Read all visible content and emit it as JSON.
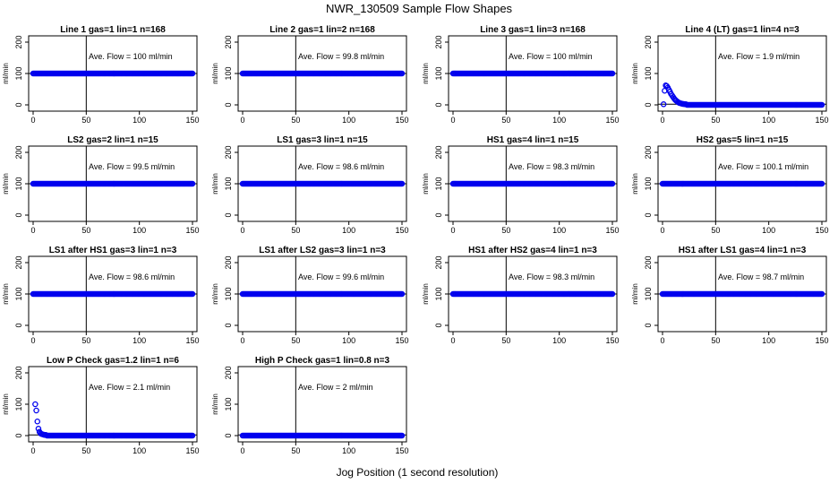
{
  "title": "NWR_130509  Sample Flow Shapes",
  "xlabel": "Jog Position (1 second resolution)",
  "ylabel": "ml/min",
  "avg_prefix": "Ave. Flow =",
  "avg_suffix": "ml/min",
  "colors": {
    "points": "#0000ee",
    "axes": "#000000",
    "background": "#ffffff"
  },
  "chart_data": [
    {
      "type": "scatter",
      "title": "Line 1 gas=1 lin=1 n=168",
      "ave_flow": "100",
      "shape": "flat",
      "level": 100,
      "xlim": [
        0,
        150
      ],
      "ylim": [
        -20,
        220
      ],
      "xticks": [
        0,
        50,
        100,
        150
      ],
      "yticks": [
        0,
        100,
        200
      ],
      "vline_x": 50,
      "hline_y": 100
    },
    {
      "type": "scatter",
      "title": "Line 2 gas=1 lin=2 n=168",
      "ave_flow": "99.8",
      "shape": "flat",
      "level": 100,
      "xlim": [
        0,
        150
      ],
      "ylim": [
        -20,
        220
      ],
      "xticks": [
        0,
        50,
        100,
        150
      ],
      "yticks": [
        0,
        100,
        200
      ],
      "vline_x": 50,
      "hline_y": 100
    },
    {
      "type": "scatter",
      "title": "Line 3 gas=1 lin=3 n=168",
      "ave_flow": "100",
      "shape": "flat",
      "level": 100,
      "xlim": [
        0,
        150
      ],
      "ylim": [
        -20,
        220
      ],
      "xticks": [
        0,
        50,
        100,
        150
      ],
      "yticks": [
        0,
        100,
        200
      ],
      "vline_x": 50,
      "hline_y": 100
    },
    {
      "type": "scatter",
      "title": "Line 4 (LT) gas=1 lin=4 n=3",
      "ave_flow": "1.9",
      "shape": "decay-lt",
      "level": 0,
      "xlim": [
        0,
        150
      ],
      "ylim": [
        -20,
        220
      ],
      "xticks": [
        0,
        50,
        100,
        150
      ],
      "yticks": [
        0,
        100,
        200
      ],
      "vline_x": 50,
      "hline_y": 2,
      "points": [
        [
          1,
          2
        ],
        [
          2,
          45
        ],
        [
          3,
          62
        ],
        [
          4,
          60
        ],
        [
          5,
          55
        ],
        [
          6,
          48
        ],
        [
          7,
          42
        ],
        [
          8,
          35
        ],
        [
          9,
          30
        ],
        [
          10,
          25
        ],
        [
          11,
          20
        ],
        [
          12,
          16
        ],
        [
          13,
          13
        ],
        [
          14,
          10
        ],
        [
          15,
          8
        ],
        [
          16,
          6
        ],
        [
          17,
          5
        ],
        [
          18,
          4
        ],
        [
          19,
          3
        ],
        [
          20,
          3
        ],
        [
          21,
          2
        ],
        [
          22,
          2
        ]
      ]
    },
    {
      "type": "scatter",
      "title": "LS2 gas=2 lin=1 n=15",
      "ave_flow": "99.5",
      "shape": "flat",
      "level": 100,
      "xlim": [
        0,
        150
      ],
      "ylim": [
        -20,
        220
      ],
      "xticks": [
        0,
        50,
        100,
        150
      ],
      "yticks": [
        0,
        100,
        200
      ],
      "vline_x": 50,
      "hline_y": 100
    },
    {
      "type": "scatter",
      "title": "LS1 gas=3 lin=1 n=15",
      "ave_flow": "98.6",
      "shape": "flat",
      "level": 100,
      "xlim": [
        0,
        150
      ],
      "ylim": [
        -20,
        220
      ],
      "xticks": [
        0,
        50,
        100,
        150
      ],
      "yticks": [
        0,
        100,
        200
      ],
      "vline_x": 50,
      "hline_y": 100
    },
    {
      "type": "scatter",
      "title": "HS1 gas=4 lin=1 n=15",
      "ave_flow": "98.3",
      "shape": "flat",
      "level": 100,
      "xlim": [
        0,
        150
      ],
      "ylim": [
        -20,
        220
      ],
      "xticks": [
        0,
        50,
        100,
        150
      ],
      "yticks": [
        0,
        100,
        200
      ],
      "vline_x": 50,
      "hline_y": 100
    },
    {
      "type": "scatter",
      "title": "HS2 gas=5 lin=1 n=15",
      "ave_flow": "100.1",
      "shape": "flat",
      "level": 100,
      "xlim": [
        0,
        150
      ],
      "ylim": [
        -20,
        220
      ],
      "xticks": [
        0,
        50,
        100,
        150
      ],
      "yticks": [
        0,
        100,
        200
      ],
      "vline_x": 50,
      "hline_y": 100
    },
    {
      "type": "scatter",
      "title": "LS1 after HS1 gas=3 lin=1 n=3",
      "ave_flow": "98.6",
      "shape": "flat",
      "level": 100,
      "xlim": [
        0,
        150
      ],
      "ylim": [
        -20,
        220
      ],
      "xticks": [
        0,
        50,
        100,
        150
      ],
      "yticks": [
        0,
        100,
        200
      ],
      "vline_x": 50,
      "hline_y": 100
    },
    {
      "type": "scatter",
      "title": "LS1 after LS2 gas=3 lin=1 n=3",
      "ave_flow": "99.6",
      "shape": "flat",
      "level": 100,
      "xlim": [
        0,
        150
      ],
      "ylim": [
        -20,
        220
      ],
      "xticks": [
        0,
        50,
        100,
        150
      ],
      "yticks": [
        0,
        100,
        200
      ],
      "vline_x": 50,
      "hline_y": 100
    },
    {
      "type": "scatter",
      "title": "HS1 after HS2 gas=4 lin=1 n=3",
      "ave_flow": "98.3",
      "shape": "flat",
      "level": 100,
      "xlim": [
        0,
        150
      ],
      "ylim": [
        -20,
        220
      ],
      "xticks": [
        0,
        50,
        100,
        150
      ],
      "yticks": [
        0,
        100,
        200
      ],
      "vline_x": 50,
      "hline_y": 100
    },
    {
      "type": "scatter",
      "title": "HS1 after LS1 gas=4 lin=1 n=3",
      "ave_flow": "98.7",
      "shape": "flat",
      "level": 100,
      "xlim": [
        0,
        150
      ],
      "ylim": [
        -20,
        220
      ],
      "xticks": [
        0,
        50,
        100,
        150
      ],
      "yticks": [
        0,
        100,
        200
      ],
      "vline_x": 50,
      "hline_y": 100
    },
    {
      "type": "scatter",
      "title": "Low P Check gas=1.2 lin=1 n=6",
      "ave_flow": "2.1",
      "shape": "decay-lowp",
      "level": 0,
      "xlim": [
        0,
        150
      ],
      "ylim": [
        -20,
        220
      ],
      "xticks": [
        0,
        50,
        100,
        150
      ],
      "yticks": [
        0,
        100,
        200
      ],
      "vline_x": 50,
      "hline_y": 2,
      "points": [
        [
          2,
          100
        ],
        [
          3,
          80
        ],
        [
          4,
          45
        ],
        [
          5,
          22
        ],
        [
          6,
          12
        ],
        [
          7,
          7
        ],
        [
          8,
          5
        ],
        [
          9,
          4
        ],
        [
          10,
          3
        ],
        [
          11,
          2
        ],
        [
          12,
          2
        ]
      ]
    },
    {
      "type": "scatter",
      "title": "High P Check gas=1 lin=0.8 n=3",
      "ave_flow": "2",
      "shape": "flat",
      "level": 0,
      "xlim": [
        0,
        150
      ],
      "ylim": [
        -20,
        220
      ],
      "xticks": [
        0,
        50,
        100,
        150
      ],
      "yticks": [
        0,
        100,
        200
      ],
      "vline_x": 50,
      "hline_y": 2
    }
  ]
}
